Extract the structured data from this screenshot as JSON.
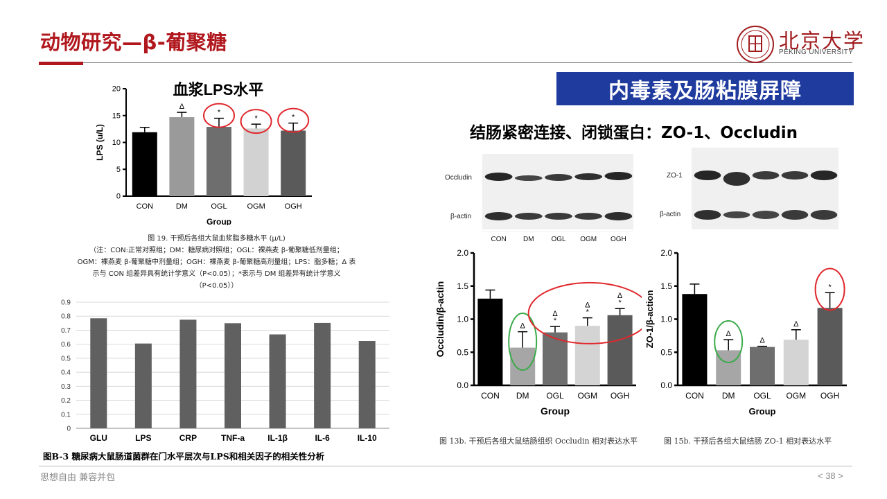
{
  "header": {
    "title": "动物研究—β-葡聚糖",
    "logo_text": "北京大学",
    "logo_sub": "PEKING UNIVERSITY"
  },
  "section_box": "内毒素及肠粘膜屏障",
  "subheading": "结肠紧密连接、闭锁蛋白：ZO-1、Occludin",
  "caption19": [
    "图 19. 干预后各组大鼠血浆脂多糖水平 (μ/L)",
    "（注：CON:正常对照组；DM：糖尿病对照组；OGL：裸燕麦 β-葡聚糖低剂量组；",
    "OGM：裸燕麦 β-葡聚糖中剂量组；OGH：裸燕麦 β-葡聚糖高剂量组；LPS：脂多糖；Δ 表",
    "示与 CON 组差异具有统计学意义（P<0.05）；*表示与 DM 组差异有统计学意义",
    "（P<0.05））"
  ],
  "b3_caption": "图B-3 糖尿病大鼠肠道菌群在门水平层次与LPS和相关因子的相关性分析",
  "fig13_caption": "图 13b. 干预后各组大鼠结肠组织 Occludin 相对表达水平",
  "fig15_caption": "图 15b. 干预后各组大鼠结肠 ZO-1 相对表达水平",
  "blot_left": {
    "band1": "Occludin",
    "band2": "β-actin"
  },
  "blot_right": {
    "band1": "ZO-1",
    "band2": "β-actin"
  },
  "blot_lanes": [
    "CON",
    "DM",
    "OGL",
    "OGM",
    "OGH"
  ],
  "footer": {
    "motto": "思想自由 兼容并包",
    "page": "< 38 >"
  },
  "colors": {
    "brand_red": "#b0181e",
    "box_blue": "#1f3b9e",
    "circle_red": "#e0282d",
    "circle_green": "#3aaa4a"
  },
  "chart_data": [
    {
      "id": "lps",
      "type": "bar",
      "title": "血浆LPS水平",
      "xlabel": "Group",
      "ylabel": "LPS (u/L)",
      "ylim": [
        0,
        20
      ],
      "yticks": [
        0,
        5,
        10,
        15,
        20
      ],
      "categories": [
        "CON",
        "DM",
        "OGL",
        "OGM",
        "OGH"
      ],
      "values": [
        11.9,
        14.7,
        12.9,
        12.6,
        12.2
      ],
      "errors": [
        0.9,
        0.9,
        1.6,
        0.8,
        1.4
      ],
      "marks": [
        "",
        "Δ",
        "*",
        "*",
        "*"
      ],
      "colors": [
        "#000000",
        "#9a9a9a",
        "#6e6e6e",
        "#d2d2d2",
        "#5a5a5a"
      ],
      "highlight_circles": [
        "OGL",
        "OGM",
        "OGH"
      ]
    },
    {
      "id": "correlation",
      "type": "bar",
      "categories": [
        "GLU",
        "LPS",
        "CRP",
        "TNF-a",
        "IL-1β",
        "IL-6",
        "IL-10"
      ],
      "values": [
        0.785,
        0.605,
        0.775,
        0.75,
        0.67,
        0.752,
        0.623
      ],
      "ylim": [
        0,
        0.9
      ],
      "yticks": [
        0,
        0.1,
        0.2,
        0.3,
        0.4,
        0.5,
        0.6,
        0.7,
        0.8,
        0.9
      ],
      "grid": true,
      "color": "#606060"
    },
    {
      "id": "occludin",
      "type": "bar",
      "xlabel": "Group",
      "ylabel": "Occludin/β-actin",
      "ylim": [
        0,
        2.0
      ],
      "yticks": [
        0.0,
        0.5,
        1.0,
        1.5,
        2.0
      ],
      "categories": [
        "CON",
        "DM",
        "OGL",
        "OGM",
        "OGH"
      ],
      "values": [
        1.31,
        0.57,
        0.8,
        0.9,
        1.06
      ],
      "errors": [
        0.13,
        0.24,
        0.09,
        0.12,
        0.1
      ],
      "marks": [
        "",
        "Δ",
        "Δ\n*",
        "Δ\n*",
        "Δ\n*"
      ],
      "colors": [
        "#000000",
        "#a6a6a6",
        "#6e6e6e",
        "#d4d4d4",
        "#5a5a5a"
      ]
    },
    {
      "id": "zo1",
      "type": "bar",
      "xlabel": "Group",
      "ylabel": "ZO-1/β-action",
      "ylim": [
        0,
        2.0
      ],
      "yticks": [
        0.0,
        0.5,
        1.0,
        1.5,
        2.0
      ],
      "categories": [
        "CON",
        "DM",
        "OGL",
        "OGM",
        "OGH"
      ],
      "values": [
        1.38,
        0.53,
        0.58,
        0.69,
        1.17
      ],
      "errors": [
        0.15,
        0.16,
        0.01,
        0.15,
        0.23
      ],
      "marks": [
        "",
        "Δ",
        "Δ",
        "Δ",
        "*"
      ],
      "colors": [
        "#000000",
        "#a6a6a6",
        "#6e6e6e",
        "#d4d4d4",
        "#5a5a5a"
      ]
    }
  ]
}
